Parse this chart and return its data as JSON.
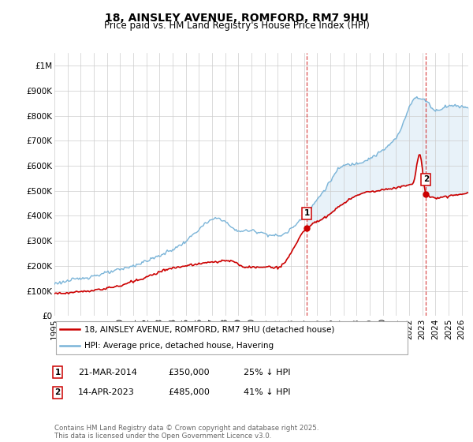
{
  "title": "18, AINSLEY AVENUE, ROMFORD, RM7 9HU",
  "subtitle": "Price paid vs. HM Land Registry's House Price Index (HPI)",
  "ylabel_ticks": [
    "£0",
    "£100K",
    "£200K",
    "£300K",
    "£400K",
    "£500K",
    "£600K",
    "£700K",
    "£800K",
    "£900K",
    "£1M"
  ],
  "ytick_values": [
    0,
    100000,
    200000,
    300000,
    400000,
    500000,
    600000,
    700000,
    800000,
    900000,
    1000000
  ],
  "ylim": [
    0,
    1050000
  ],
  "xlim_start": 1995.0,
  "xlim_end": 2026.5,
  "sale1_x": 2014.22,
  "sale1_y": 350000,
  "sale2_x": 2023.28,
  "sale2_y": 485000,
  "hpi_color": "#7ab4d8",
  "hpi_fill_color": "#daeaf5",
  "price_color": "#cc0000",
  "vline_color": "#cc0000",
  "background_color": "#ffffff",
  "grid_color": "#cccccc",
  "legend_label_price": "18, AINSLEY AVENUE, ROMFORD, RM7 9HU (detached house)",
  "legend_label_hpi": "HPI: Average price, detached house, Havering",
  "note1_label": "1",
  "note1_date": "21-MAR-2014",
  "note1_price": "£350,000",
  "note1_pct": "25% ↓ HPI",
  "note2_label": "2",
  "note2_date": "14-APR-2023",
  "note2_price": "£485,000",
  "note2_pct": "41% ↓ HPI",
  "footer": "Contains HM Land Registry data © Crown copyright and database right 2025.\nThis data is licensed under the Open Government Licence v3.0.",
  "title_fontsize": 10,
  "subtitle_fontsize": 8.5,
  "tick_fontsize": 7.5
}
